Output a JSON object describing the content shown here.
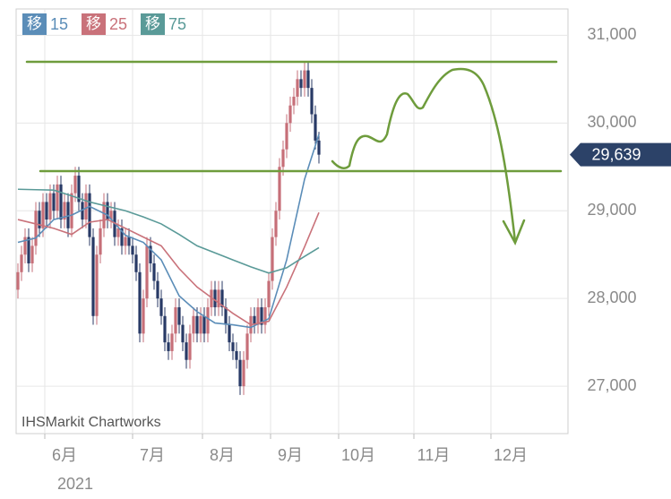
{
  "chart_data": {
    "type": "candlestick",
    "legend_marker": "移",
    "watermark": "IHSMarkit Chartworks",
    "year_label": "2021",
    "up_color": "#c66f78",
    "down_color": "#283a66",
    "xlim": [
      0,
      154
    ],
    "xticks": [
      {
        "value": 8,
        "label": "6月"
      },
      {
        "value": 32.5,
        "label": "7月"
      },
      {
        "value": 52,
        "label": "8月"
      },
      {
        "value": 71,
        "label": "9月"
      },
      {
        "value": 90,
        "label": "10月"
      },
      {
        "value": 111,
        "label": "11月"
      },
      {
        "value": 132.5,
        "label": "12月"
      }
    ],
    "ylim": [
      26460,
      31300
    ],
    "yticks": [
      {
        "value": 27000,
        "label": "27,000"
      },
      {
        "value": 28000,
        "label": "28,000"
      },
      {
        "value": 29000,
        "label": "29,000"
      },
      {
        "value": 30000,
        "label": "30,000"
      },
      {
        "value": 31000,
        "label": "31,000"
      }
    ],
    "grid": true,
    "last_price": {
      "value": 29639,
      "label": "29,639",
      "color": "#2c4268"
    },
    "open": [
      28100,
      28300,
      28500,
      28700,
      28400,
      28600,
      29000,
      28800,
      29100,
      28900,
      29200,
      29000,
      29300,
      28900,
      29100,
      28800,
      29200,
      29400,
      29100,
      28900,
      29200,
      28700,
      27800,
      28500,
      28800,
      29100,
      28900,
      29000,
      28700,
      28800,
      28600,
      28700,
      28600,
      28500,
      28300,
      27600,
      28000,
      28600,
      28400,
      28200,
      28000,
      27800,
      27500,
      27400,
      27600,
      27900,
      27700,
      27500,
      27300,
      27600,
      27800,
      27600,
      27800,
      27600,
      27900,
      28100,
      27900,
      28100,
      27900,
      27700,
      27500,
      27400,
      27300,
      27000,
      27300,
      27600,
      27800,
      27700,
      27900,
      27700,
      27900,
      28200,
      28700,
      29000,
      29500,
      29700,
      30000,
      30200,
      30300,
      30500,
      30400,
      30600,
      30400,
      30100,
      29800
    ],
    "high": [
      28400,
      28600,
      28800,
      28800,
      28700,
      29100,
      29100,
      29200,
      29200,
      29300,
      29300,
      29400,
      29400,
      29200,
      29200,
      29300,
      29500,
      29500,
      29200,
      29300,
      29300,
      28800,
      28600,
      28900,
      29200,
      29200,
      29100,
      29100,
      28900,
      28900,
      28800,
      28800,
      28700,
      28600,
      28400,
      28100,
      28700,
      28700,
      28500,
      28300,
      28100,
      27900,
      27600,
      27700,
      28000,
      28000,
      27800,
      27600,
      27700,
      27900,
      27900,
      27900,
      27900,
      28000,
      28200,
      28200,
      28200,
      28200,
      28000,
      27800,
      27600,
      27500,
      27400,
      27400,
      27700,
      27900,
      27900,
      28000,
      28000,
      28000,
      28300,
      28800,
      29100,
      29600,
      29800,
      30100,
      30300,
      30400,
      30600,
      30600,
      30700,
      30700,
      30500,
      30200,
      29900
    ],
    "low": [
      28000,
      28200,
      28400,
      28300,
      28300,
      28500,
      28700,
      28700,
      28800,
      28800,
      28900,
      28900,
      28800,
      28800,
      28700,
      28700,
      29100,
      29000,
      28800,
      28800,
      28600,
      27700,
      27700,
      28400,
      28700,
      28800,
      28800,
      28600,
      28600,
      28500,
      28500,
      28500,
      28400,
      28200,
      27500,
      27500,
      27900,
      28300,
      28100,
      27900,
      27700,
      27400,
      27300,
      27300,
      27500,
      27600,
      27400,
      27200,
      27200,
      27500,
      27500,
      27500,
      27500,
      27500,
      27800,
      27800,
      27800,
      27800,
      27600,
      27400,
      27300,
      27200,
      26900,
      26900,
      27200,
      27500,
      27600,
      27600,
      27600,
      27600,
      27800,
      28100,
      28600,
      28900,
      29400,
      29600,
      29900,
      30100,
      30200,
      30300,
      30300,
      30300,
      30000,
      29700,
      29539
    ],
    "close": [
      28300,
      28500,
      28700,
      28400,
      28600,
      29000,
      28800,
      29100,
      28900,
      29200,
      29000,
      29300,
      28900,
      29100,
      28800,
      29200,
      29400,
      29100,
      28900,
      29200,
      28700,
      27800,
      28500,
      28800,
      29100,
      28900,
      29000,
      28700,
      28800,
      28600,
      28700,
      28600,
      28500,
      28300,
      27600,
      28000,
      28600,
      28400,
      28200,
      28000,
      27800,
      27500,
      27400,
      27600,
      27900,
      27700,
      27500,
      27300,
      27600,
      27800,
      27600,
      27800,
      27600,
      27900,
      28100,
      27900,
      28100,
      27900,
      27700,
      27500,
      27400,
      27300,
      27000,
      27300,
      27600,
      27800,
      27700,
      27900,
      27700,
      27900,
      28200,
      28700,
      29000,
      29500,
      29700,
      30000,
      30200,
      30300,
      30500,
      30400,
      30600,
      30400,
      30100,
      29800,
      29639
    ],
    "series": [
      {
        "name": "15",
        "color": "#5b8db8",
        "x": [
          0.5,
          5.5,
          10.5,
          15.5,
          20.5,
          25.5,
          30.5,
          35.5,
          40.5,
          45.5,
          50.5,
          55.5,
          60.5,
          65.5,
          70.5,
          75.5,
          80.5,
          84.5
        ],
        "values": [
          28640,
          28690,
          28900,
          28950,
          29050,
          28950,
          28720,
          28640,
          28440,
          28030,
          27850,
          27720,
          27700,
          27670,
          27770,
          28440,
          29360,
          29870
        ]
      },
      {
        "name": "25",
        "color": "#c9727a",
        "x": [
          0.5,
          5.5,
          10.5,
          15.5,
          20.5,
          25.5,
          30.5,
          35.5,
          40.5,
          45.5,
          50.5,
          55.5,
          60.5,
          65.5,
          70.5,
          75.5,
          80.5,
          84.5
        ],
        "values": [
          28900,
          28850,
          28800,
          28730,
          28870,
          28900,
          28800,
          28700,
          28600,
          28340,
          28130,
          27980,
          27830,
          27700,
          27740,
          28130,
          28590,
          28980
        ]
      },
      {
        "name": "75",
        "color": "#5a9a98",
        "x": [
          0.5,
          5.5,
          10.5,
          15.5,
          20.5,
          25.5,
          30.5,
          35.5,
          40.5,
          45.5,
          50.5,
          55.5,
          60.5,
          65.5,
          70.5,
          75.5,
          80.5,
          84.5
        ],
        "values": [
          29245,
          29240,
          29235,
          29170,
          29100,
          29050,
          29000,
          28930,
          28850,
          28730,
          28600,
          28520,
          28440,
          28360,
          28290,
          28350,
          28480,
          28580
        ]
      }
    ]
  }
}
